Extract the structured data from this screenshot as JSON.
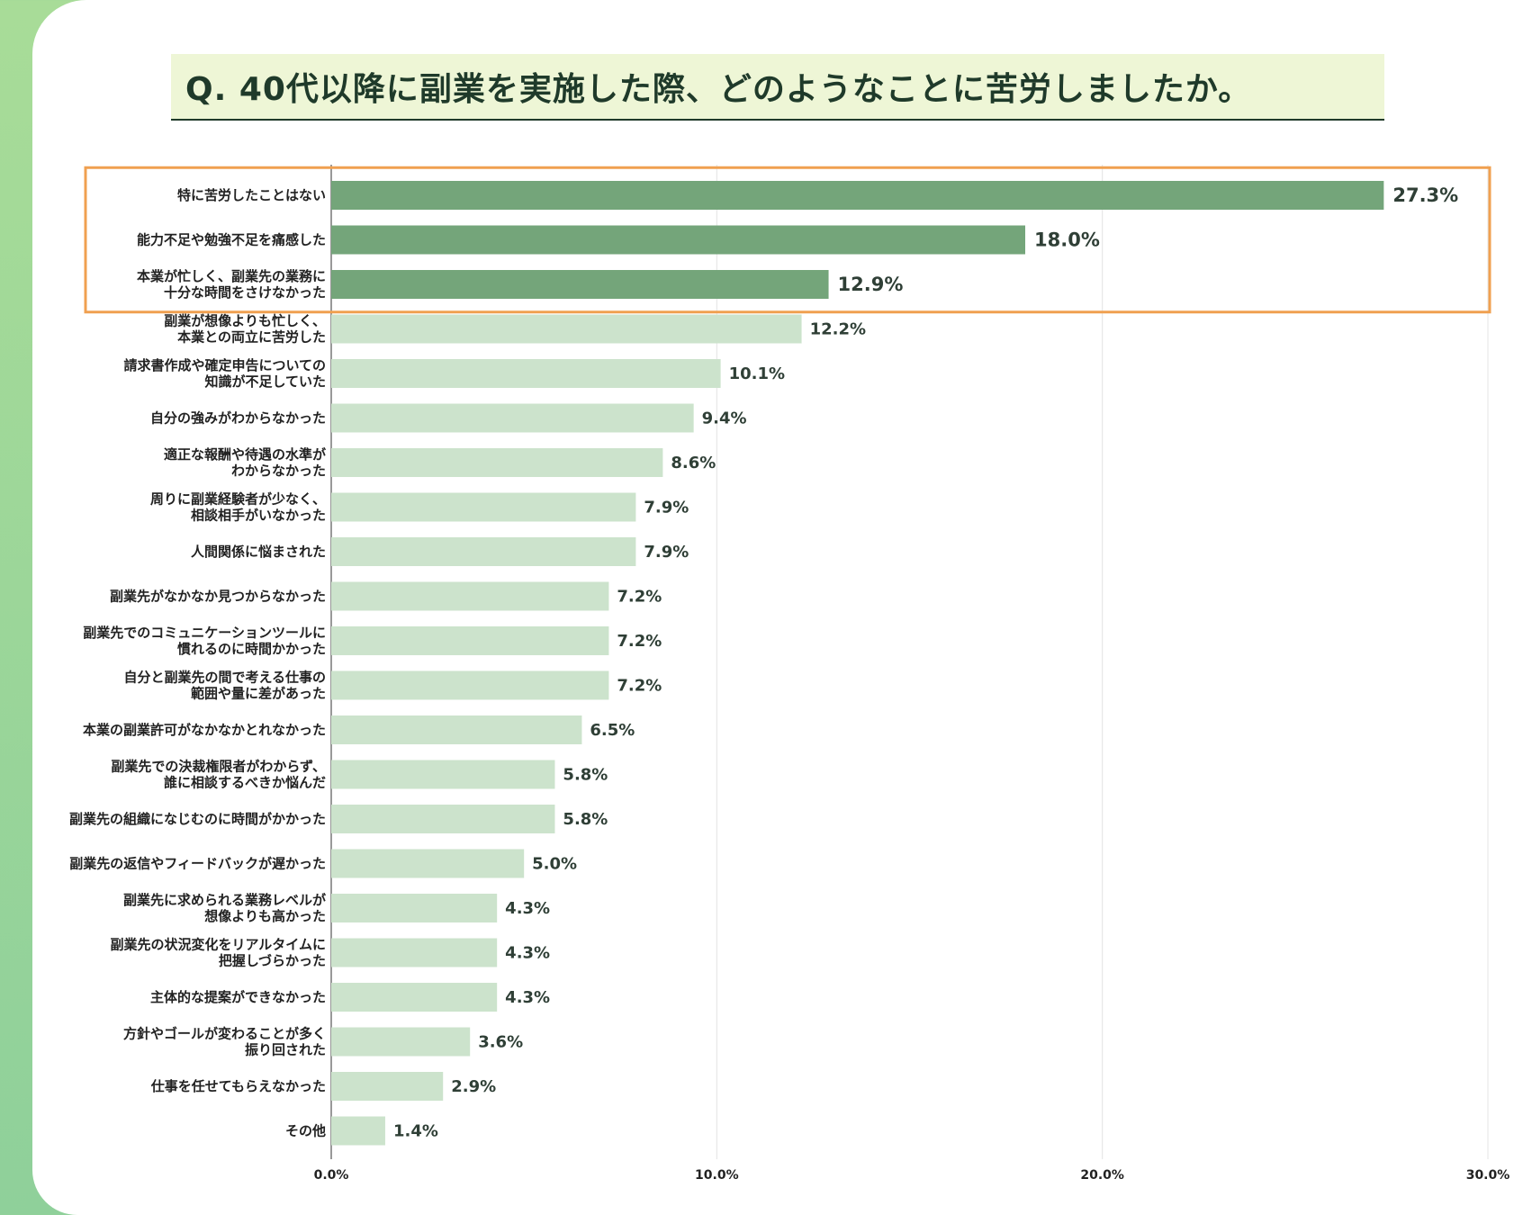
{
  "colors": {
    "highlight_bar": "#74a57a",
    "normal_bar": "#cce3cc",
    "highlight_frame": "#f0a050",
    "grid": "#e4e4e4",
    "axis": "#555555"
  },
  "chart_data": {
    "type": "bar",
    "orientation": "horizontal",
    "title": "Q.  40代以降に副業を実施した際、どのようなことに苦労しましたか。",
    "xlabel": "",
    "ylabel": "",
    "xlim": [
      0,
      30
    ],
    "grid": true,
    "highlight_count": 3,
    "ticks": [
      "0.0%",
      "10.0%",
      "20.0%",
      "30.0%"
    ],
    "tick_values": [
      0,
      10,
      20,
      30
    ],
    "categories": [
      [
        "特に苦労したことはない"
      ],
      [
        "能力不足や勉強不足を痛感した"
      ],
      [
        "本業が忙しく、副業先の業務に",
        "十分な時間をさけなかった"
      ],
      [
        "副業が想像よりも忙しく、",
        "本業との両立に苦労した"
      ],
      [
        "請求書作成や確定申告についての",
        "知識が不足していた"
      ],
      [
        "自分の強みがわからなかった"
      ],
      [
        "適正な報酬や待遇の水準が",
        "わからなかった"
      ],
      [
        "周りに副業経験者が少なく、",
        "相談相手がいなかった"
      ],
      [
        "人間関係に悩まされた"
      ],
      [
        "副業先がなかなか見つからなかった"
      ],
      [
        "副業先でのコミュニケーションツールに",
        "慣れるのに時間かかった"
      ],
      [
        "自分と副業先の間で考える仕事の",
        "範囲や量に差があった"
      ],
      [
        "本業の副業許可がなかなかとれなかった"
      ],
      [
        "副業先での決裁権限者がわからず、",
        "誰に相談するべきか悩んだ"
      ],
      [
        "副業先の組織になじむのに時間がかかった"
      ],
      [
        "副業先の返信やフィードバックが遅かった"
      ],
      [
        "副業先に求められる業務レベルが",
        "想像よりも高かった"
      ],
      [
        "副業先の状況変化をリアルタイムに",
        "把握しづらかった"
      ],
      [
        "主体的な提案ができなかった"
      ],
      [
        "方針やゴールが変わることが多く",
        "振り回された"
      ],
      [
        "仕事を任せてもらえなかった"
      ],
      [
        "その他"
      ]
    ],
    "values": [
      27.3,
      18.0,
      12.9,
      12.2,
      10.1,
      9.4,
      8.6,
      7.9,
      7.9,
      7.2,
      7.2,
      7.2,
      6.5,
      5.8,
      5.8,
      5.0,
      4.3,
      4.3,
      4.3,
      3.6,
      2.9,
      1.4
    ],
    "value_labels": [
      "27.3%",
      "18.0%",
      "12.9%",
      "12.2%",
      "10.1%",
      "9.4%",
      "8.6%",
      "7.9%",
      "7.9%",
      "7.2%",
      "7.2%",
      "7.2%",
      "6.5%",
      "5.8%",
      "5.8%",
      "5.0%",
      "4.3%",
      "4.3%",
      "4.3%",
      "3.6%",
      "2.9%",
      "1.4%"
    ]
  }
}
